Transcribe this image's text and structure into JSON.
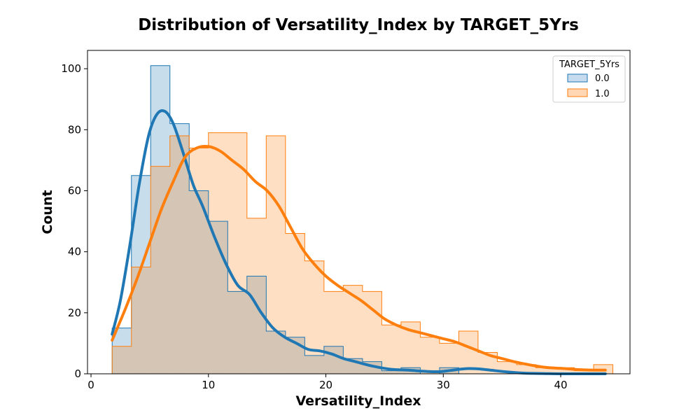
{
  "chart_data": {
    "type": "histogram",
    "title": "Distribution of Versatility_Index by TARGET_5Yrs",
    "xlabel": "Versatility_Index",
    "ylabel": "Count",
    "xlim": [
      -0.3,
      45.9
    ],
    "ylim": [
      0,
      106
    ],
    "xticks": [
      0,
      10,
      20,
      30,
      40
    ],
    "yticks": [
      0,
      20,
      40,
      60,
      80,
      100
    ],
    "grid": false,
    "legend": {
      "title": "TARGET_5Yrs",
      "position": "top-right"
    },
    "bin_edges": [
      1.8,
      3.44,
      5.08,
      6.72,
      8.36,
      10.0,
      11.64,
      13.28,
      14.92,
      16.56,
      18.2,
      19.84,
      21.48,
      23.12,
      24.76,
      26.4,
      28.04,
      29.68,
      31.32,
      32.96,
      34.6,
      36.24,
      37.88,
      39.52,
      41.16,
      42.8,
      44.44
    ],
    "series": [
      {
        "name": "0.0",
        "line_color": "#1f77b4",
        "fill_color": "#c6dbed",
        "counts": [
          15,
          65,
          101,
          82,
          60,
          50,
          27,
          32,
          14,
          12,
          6,
          9,
          5,
          4,
          1,
          2,
          0,
          2,
          0,
          0,
          0,
          0,
          0,
          0,
          0,
          0
        ],
        "kde": [
          [
            1.8,
            13
          ],
          [
            2.5,
            24
          ],
          [
            3.3,
            42
          ],
          [
            4.1,
            62
          ],
          [
            4.9,
            78
          ],
          [
            5.6,
            85
          ],
          [
            6.3,
            86
          ],
          [
            7.0,
            82
          ],
          [
            7.8,
            73
          ],
          [
            8.7,
            62
          ],
          [
            9.5,
            55
          ],
          [
            10.5,
            45
          ],
          [
            11.5,
            36
          ],
          [
            12.5,
            29
          ],
          [
            13.5,
            26
          ],
          [
            14.5,
            20
          ],
          [
            15.5,
            15
          ],
          [
            16.5,
            12
          ],
          [
            17.5,
            10
          ],
          [
            18.5,
            8
          ],
          [
            19.5,
            7.5
          ],
          [
            20.5,
            6.5
          ],
          [
            21.5,
            5
          ],
          [
            22.5,
            4
          ],
          [
            24,
            2.5
          ],
          [
            25.5,
            1.5
          ],
          [
            27,
            1.2
          ],
          [
            28.5,
            0.8
          ],
          [
            29.7,
            0.7
          ],
          [
            31,
            1.3
          ],
          [
            32,
            1.7
          ],
          [
            33,
            1.6
          ],
          [
            34,
            1.2
          ],
          [
            35.5,
            0.6
          ],
          [
            37,
            0.2
          ],
          [
            38.5,
            0.1
          ],
          [
            40,
            0
          ],
          [
            42,
            0
          ],
          [
            43.8,
            0
          ]
        ]
      },
      {
        "name": "1.0",
        "line_color": "#ff7f0e",
        "fill_color": "#ffd7b4",
        "counts": [
          9,
          35,
          68,
          78,
          74,
          79,
          79,
          51,
          78,
          46,
          37,
          27,
          29,
          27,
          16,
          17,
          12,
          10,
          14,
          7,
          4,
          3,
          2,
          2,
          1,
          3
        ],
        "kde": [
          [
            1.8,
            11
          ],
          [
            3,
            22
          ],
          [
            4,
            32
          ],
          [
            5,
            43
          ],
          [
            6,
            54
          ],
          [
            7,
            63
          ],
          [
            8,
            71
          ],
          [
            9,
            74
          ],
          [
            10,
            74.5
          ],
          [
            11,
            73
          ],
          [
            12,
            70
          ],
          [
            13,
            67
          ],
          [
            14,
            63
          ],
          [
            15,
            60
          ],
          [
            16,
            55
          ],
          [
            17,
            48
          ],
          [
            18,
            41
          ],
          [
            19,
            36
          ],
          [
            20,
            32
          ],
          [
            21,
            29
          ],
          [
            22,
            26.5
          ],
          [
            23,
            24
          ],
          [
            24,
            21
          ],
          [
            25,
            18
          ],
          [
            26,
            16
          ],
          [
            27,
            14.5
          ],
          [
            28,
            13.5
          ],
          [
            29,
            12.5
          ],
          [
            30,
            11.5
          ],
          [
            31,
            10.5
          ],
          [
            32,
            9
          ],
          [
            33,
            7.5
          ],
          [
            34,
            6
          ],
          [
            35,
            5
          ],
          [
            36,
            4
          ],
          [
            37,
            3.2
          ],
          [
            38,
            2.5
          ],
          [
            39,
            2
          ],
          [
            40,
            1.8
          ],
          [
            41,
            1.5
          ],
          [
            42,
            1.3
          ],
          [
            43,
            1.2
          ],
          [
            43.8,
            1.2
          ]
        ]
      }
    ]
  }
}
